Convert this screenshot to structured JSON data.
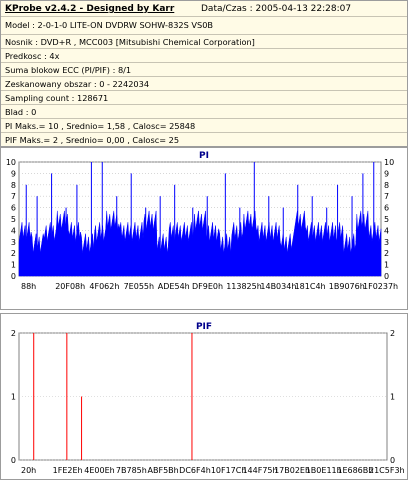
{
  "header": {
    "title": "KProbe v2.4.2 - Designed by Karr",
    "date": "Data/Czas : 2005-04-13 22:28:07"
  },
  "info": [
    "Model : 2-0-1-0 LITE-ON DVDRW SOHW-832S  VS0B",
    "Nosnik : DVD+R , MCC003 [Mitsubishi Chemical Corporation]",
    "Predkosc : 4x",
    "Suma blokow ECC (PI/PIF) : 8/1",
    "Zeskanowany obszar : 0 - 2242034",
    "Sampling count : 128671",
    "Blad : 0",
    "PI Maks.= 10 , Srednio= 1,58 , Calosc= 25848",
    "PIF Maks.= 2 , Srednio= 0,00 , Calosc= 25"
  ],
  "colors": {
    "pi_fill": "#0000ff",
    "pif_bar": "#ff0000",
    "title": "#00008b",
    "grid": "#c0c0c0",
    "background": "#ffffff",
    "info_bg": "#fffbe6"
  },
  "chart_data": [
    {
      "type": "area",
      "title": "PI",
      "ylim": [
        0,
        10
      ],
      "yticks": [
        "0",
        "1",
        "2",
        "3",
        "4",
        "5",
        "6",
        "7",
        "8",
        "9",
        "10"
      ],
      "xtick_labels": [
        "88h",
        "20F08h",
        "4F062h",
        "7E055h",
        "ADE54h",
        "DF9E0h",
        "113825h",
        "14B034h",
        "181C4h",
        "1B9076h",
        "1F0237h"
      ],
      "series": [
        {
          "baseline_values": [
            4,
            3,
            4,
            5,
            4,
            3,
            4,
            5,
            4,
            4,
            5,
            3,
            4,
            4,
            5,
            4,
            3,
            4,
            5,
            4,
            4,
            3,
            5,
            4,
            4,
            4,
            3,
            5,
            4,
            4
          ],
          "spikes": [
            {
              "pos": 0.02,
              "value": 8
            },
            {
              "pos": 0.05,
              "value": 7
            },
            {
              "pos": 0.09,
              "value": 9
            },
            {
              "pos": 0.13,
              "value": 6
            },
            {
              "pos": 0.16,
              "value": 8
            },
            {
              "pos": 0.2,
              "value": 10
            },
            {
              "pos": 0.23,
              "value": 10
            },
            {
              "pos": 0.27,
              "value": 7
            },
            {
              "pos": 0.31,
              "value": 9
            },
            {
              "pos": 0.35,
              "value": 6
            },
            {
              "pos": 0.39,
              "value": 7
            },
            {
              "pos": 0.43,
              "value": 8
            },
            {
              "pos": 0.48,
              "value": 6
            },
            {
              "pos": 0.52,
              "value": 7
            },
            {
              "pos": 0.57,
              "value": 9
            },
            {
              "pos": 0.61,
              "value": 6
            },
            {
              "pos": 0.65,
              "value": 10
            },
            {
              "pos": 0.69,
              "value": 7
            },
            {
              "pos": 0.73,
              "value": 6
            },
            {
              "pos": 0.77,
              "value": 8
            },
            {
              "pos": 0.81,
              "value": 7
            },
            {
              "pos": 0.85,
              "value": 6
            },
            {
              "pos": 0.88,
              "value": 8
            },
            {
              "pos": 0.92,
              "value": 7
            },
            {
              "pos": 0.95,
              "value": 9
            },
            {
              "pos": 0.98,
              "value": 10
            }
          ]
        }
      ]
    },
    {
      "type": "bar",
      "title": "PIF",
      "ylim": [
        0,
        2
      ],
      "yticks": [
        "0",
        "1",
        "2"
      ],
      "xtick_labels": [
        "20h",
        "1FE2Eh",
        "4E00Eh",
        "7B785h",
        "ABF5Bh",
        "DC6F4h",
        "10F17Ch",
        "144F75h",
        "17B02Eh",
        "1B0E11h",
        "1E686Bh",
        "21C5F3h"
      ],
      "series": [
        {
          "values": [
            {
              "pos": 0.04,
              "value": 2
            },
            {
              "pos": 0.13,
              "value": 2
            },
            {
              "pos": 0.17,
              "value": 1
            },
            {
              "pos": 0.47,
              "value": 2
            }
          ]
        }
      ]
    }
  ]
}
